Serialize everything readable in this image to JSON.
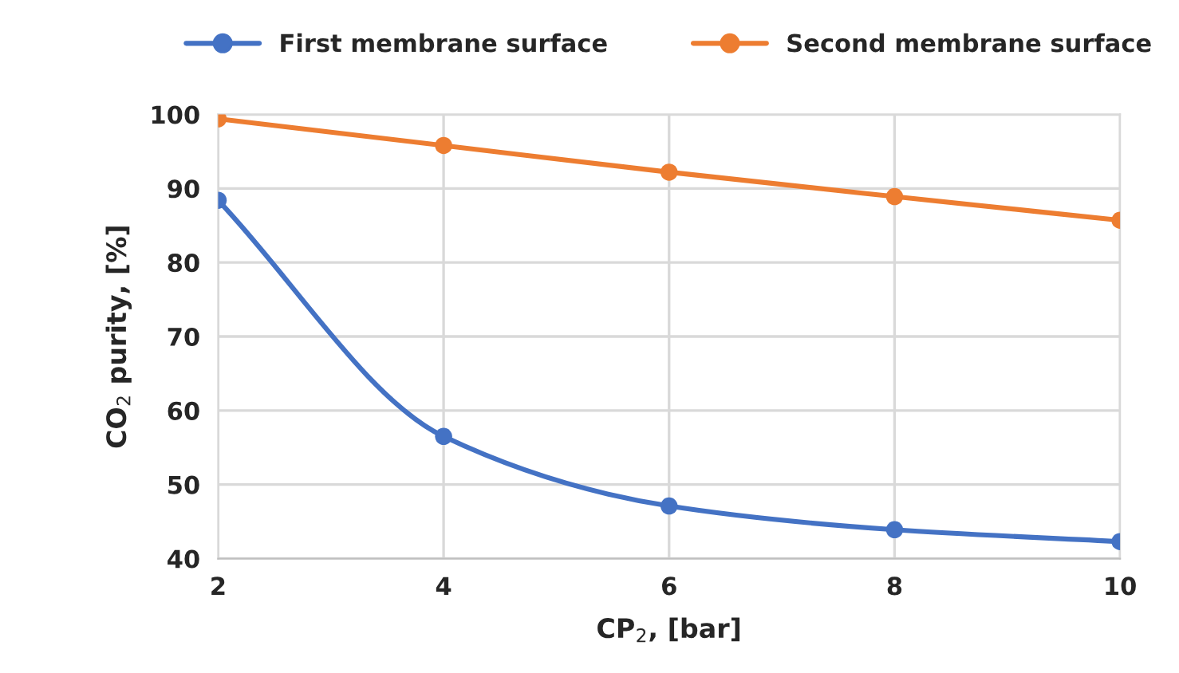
{
  "chart_data": {
    "type": "line",
    "xlabel": "CP$_{2}$, [bar]",
    "ylabel": "CO$_{2}$ purity, [%]",
    "x": [
      2,
      4,
      6,
      8,
      10
    ],
    "series": [
      {
        "name": "First membrane surface",
        "color": "#4472c4",
        "values": [
          88.4,
          56.5,
          47.1,
          43.9,
          42.3
        ]
      },
      {
        "name": "Second membrane surface",
        "color": "#ed7d31",
        "values": [
          99.4,
          95.8,
          92.2,
          88.9,
          85.7
        ]
      }
    ],
    "xlim": [
      2,
      10
    ],
    "xticks": [
      2,
      4,
      6,
      8,
      10
    ],
    "ylim": [
      40,
      100
    ],
    "yticks": [
      40,
      50,
      60,
      70,
      80,
      90,
      100
    ],
    "grid": true,
    "legend": "top",
    "marker": "circle",
    "line_style": "solid"
  }
}
